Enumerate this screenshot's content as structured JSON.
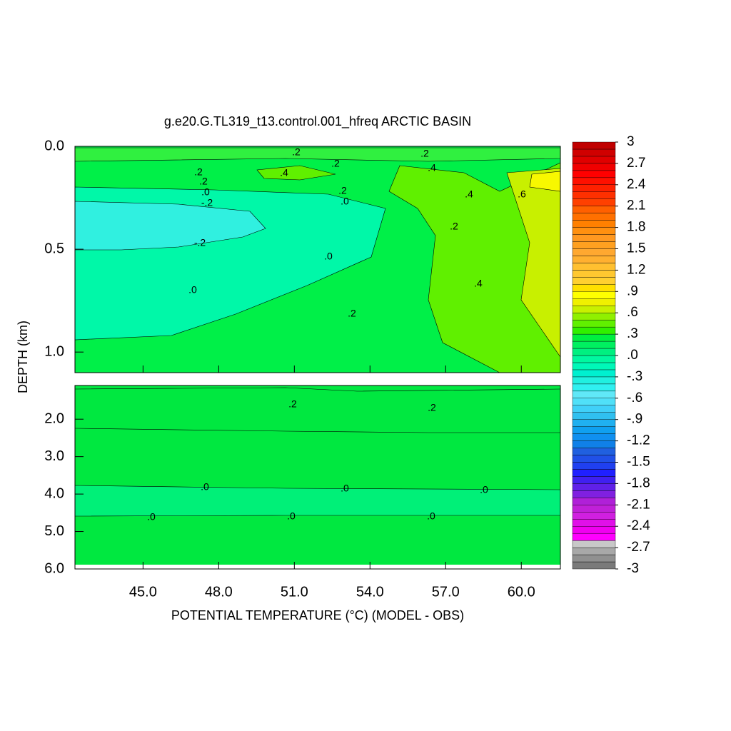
{
  "chart_data": {
    "type": "contour",
    "title": "g.e20.G.TL319_t13.control.001_hfreq ARCTIC BASIN",
    "x_label": "POTENTIAL TEMPERATURE (°C) (MODEL - OBS)",
    "y_label": "DEPTH (km)",
    "xlim": [
      42.3,
      61.55
    ],
    "xticks": [
      {
        "value": 45,
        "label": "45.0"
      },
      {
        "value": 48,
        "label": "48.0"
      },
      {
        "value": 51,
        "label": "51.0"
      },
      {
        "value": 54,
        "label": "54.0"
      },
      {
        "value": 57,
        "label": "57.0"
      },
      {
        "value": 60,
        "label": "60.0"
      }
    ],
    "y_reversed": true,
    "panels": [
      {
        "ylim": [
          0,
          1.1
        ],
        "yticks": [
          {
            "value": 0,
            "label": "0.0"
          },
          {
            "value": 0.5,
            "label": "0.5"
          },
          {
            "value": 1,
            "label": "1.0"
          }
        ]
      },
      {
        "ylim": [
          1.1,
          6
        ],
        "yticks": [
          {
            "value": 2,
            "label": "2.0"
          },
          {
            "value": 3,
            "label": "3.0"
          },
          {
            "value": 4,
            "label": "4.0"
          },
          {
            "value": 5,
            "label": "5.0"
          },
          {
            "value": 6,
            "label": "6.0"
          }
        ]
      }
    ],
    "contour_labels": [
      ".2",
      ".2",
      ".2",
      ".4",
      ".4",
      ".2",
      ".2",
      ".0",
      "-.2",
      ".2",
      ".0",
      ".4",
      ".6",
      "-.2",
      ".2",
      ".0",
      ".0",
      ".4",
      ".2",
      ".2",
      ".2",
      ".0",
      ".0",
      ".0",
      ".0",
      ".0",
      ".0"
    ],
    "colorbar": {
      "clim": [
        -3,
        3
      ],
      "colors": [
        "#7a7a7a",
        "#909090",
        "#a8a8a8",
        "#c8c8c8",
        "#ff00ff",
        "#f000f0",
        "#e010e8",
        "#d020e0",
        "#c020d8",
        "#b020d8",
        "#8020e0",
        "#6020e8",
        "#4020f0",
        "#2020ff",
        "#2040f0",
        "#2050e8",
        "#2060e0",
        "#1080e8",
        "#1090f0",
        "#10a0f0",
        "#20b0f0",
        "#30c0f0",
        "#40d0f8",
        "#50e0f8",
        "#60e8f8",
        "#30f0f0",
        "#20f0e0",
        "#00f0d0",
        "#00f8b8",
        "#00f8a0",
        "#00f080",
        "#00f060",
        "#00f040",
        "#30f000",
        "#60f000",
        "#90f000",
        "#c8f000",
        "#f0f000",
        "#ffff00",
        "#ffe000",
        "#ffd030",
        "#ffc830",
        "#ffc030",
        "#ffb030",
        "#ffa830",
        "#ffa020",
        "#ff9820",
        "#ff9010",
        "#ff8000",
        "#ff7000",
        "#ff6000",
        "#ff4000",
        "#ff3000",
        "#ff2000",
        "#ff1000",
        "#ff0000",
        "#f00000",
        "#e00000",
        "#d00000",
        "#c00000"
      ],
      "ticks": [
        3,
        {
          "value": 2.7,
          "label": "2.7"
        },
        {
          "value": 2.4,
          "label": "2.4"
        },
        {
          "value": 2.1,
          "label": "2.1"
        },
        {
          "value": 1.8,
          "label": "1.8"
        },
        {
          "value": 1.5,
          "label": "1.5"
        },
        {
          "value": 1.2,
          "label": "1.2"
        },
        {
          "value": 0.9,
          "label": ".9"
        },
        {
          "value": 0.6,
          "label": ".6"
        },
        {
          "value": 0.3,
          "label": ".3"
        },
        {
          "value": 0,
          "label": ".0"
        },
        {
          "value": -0.3,
          "label": "-.3"
        },
        {
          "value": -0.6,
          "label": "-.6"
        },
        {
          "value": -0.9,
          "label": "-.9"
        },
        {
          "value": -1.2,
          "label": "-1.2"
        },
        {
          "value": -1.5,
          "label": "-1.5"
        },
        {
          "value": -1.8,
          "label": "-1.8"
        },
        {
          "value": -2.1,
          "label": "-2.1"
        },
        {
          "value": -2.4,
          "label": "-2.4"
        },
        {
          "value": -2.7,
          "label": "-2.7"
        },
        -3
      ]
    }
  }
}
